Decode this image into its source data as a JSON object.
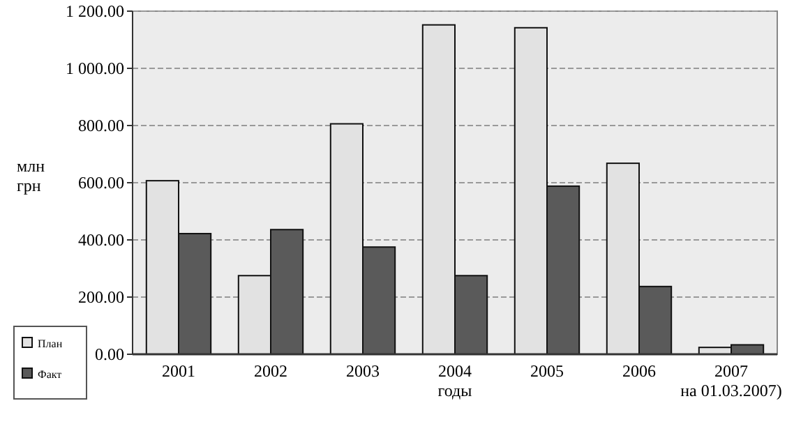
{
  "chart_data": {
    "type": "bar",
    "xlabel": "годы",
    "ylabel": "млн грн",
    "categories": [
      "2001",
      "2002",
      "2003",
      "2004",
      "2005",
      "2006",
      "2007\nна 01.03.2007)"
    ],
    "series": [
      {
        "name": "План",
        "color": "#e2e2e2",
        "values": [
          607,
          275,
          806,
          1152,
          1142,
          668,
          24
        ]
      },
      {
        "name": "Факт",
        "color": "#5a5a5a",
        "values": [
          422,
          436,
          375,
          275,
          588,
          237,
          33
        ]
      }
    ],
    "ylim": [
      0,
      1200
    ],
    "yticks": [
      {
        "value": 0,
        "label": "0.00"
      },
      {
        "value": 200,
        "label": "200.00"
      },
      {
        "value": 400,
        "label": "400.00"
      },
      {
        "value": 600,
        "label": "600.00"
      },
      {
        "value": 800,
        "label": "800.00"
      },
      {
        "value": 1000,
        "label": "1 000.00"
      },
      {
        "value": 1200,
        "label": "1 200.00"
      }
    ],
    "grid": "y",
    "legend": "bottom left"
  }
}
